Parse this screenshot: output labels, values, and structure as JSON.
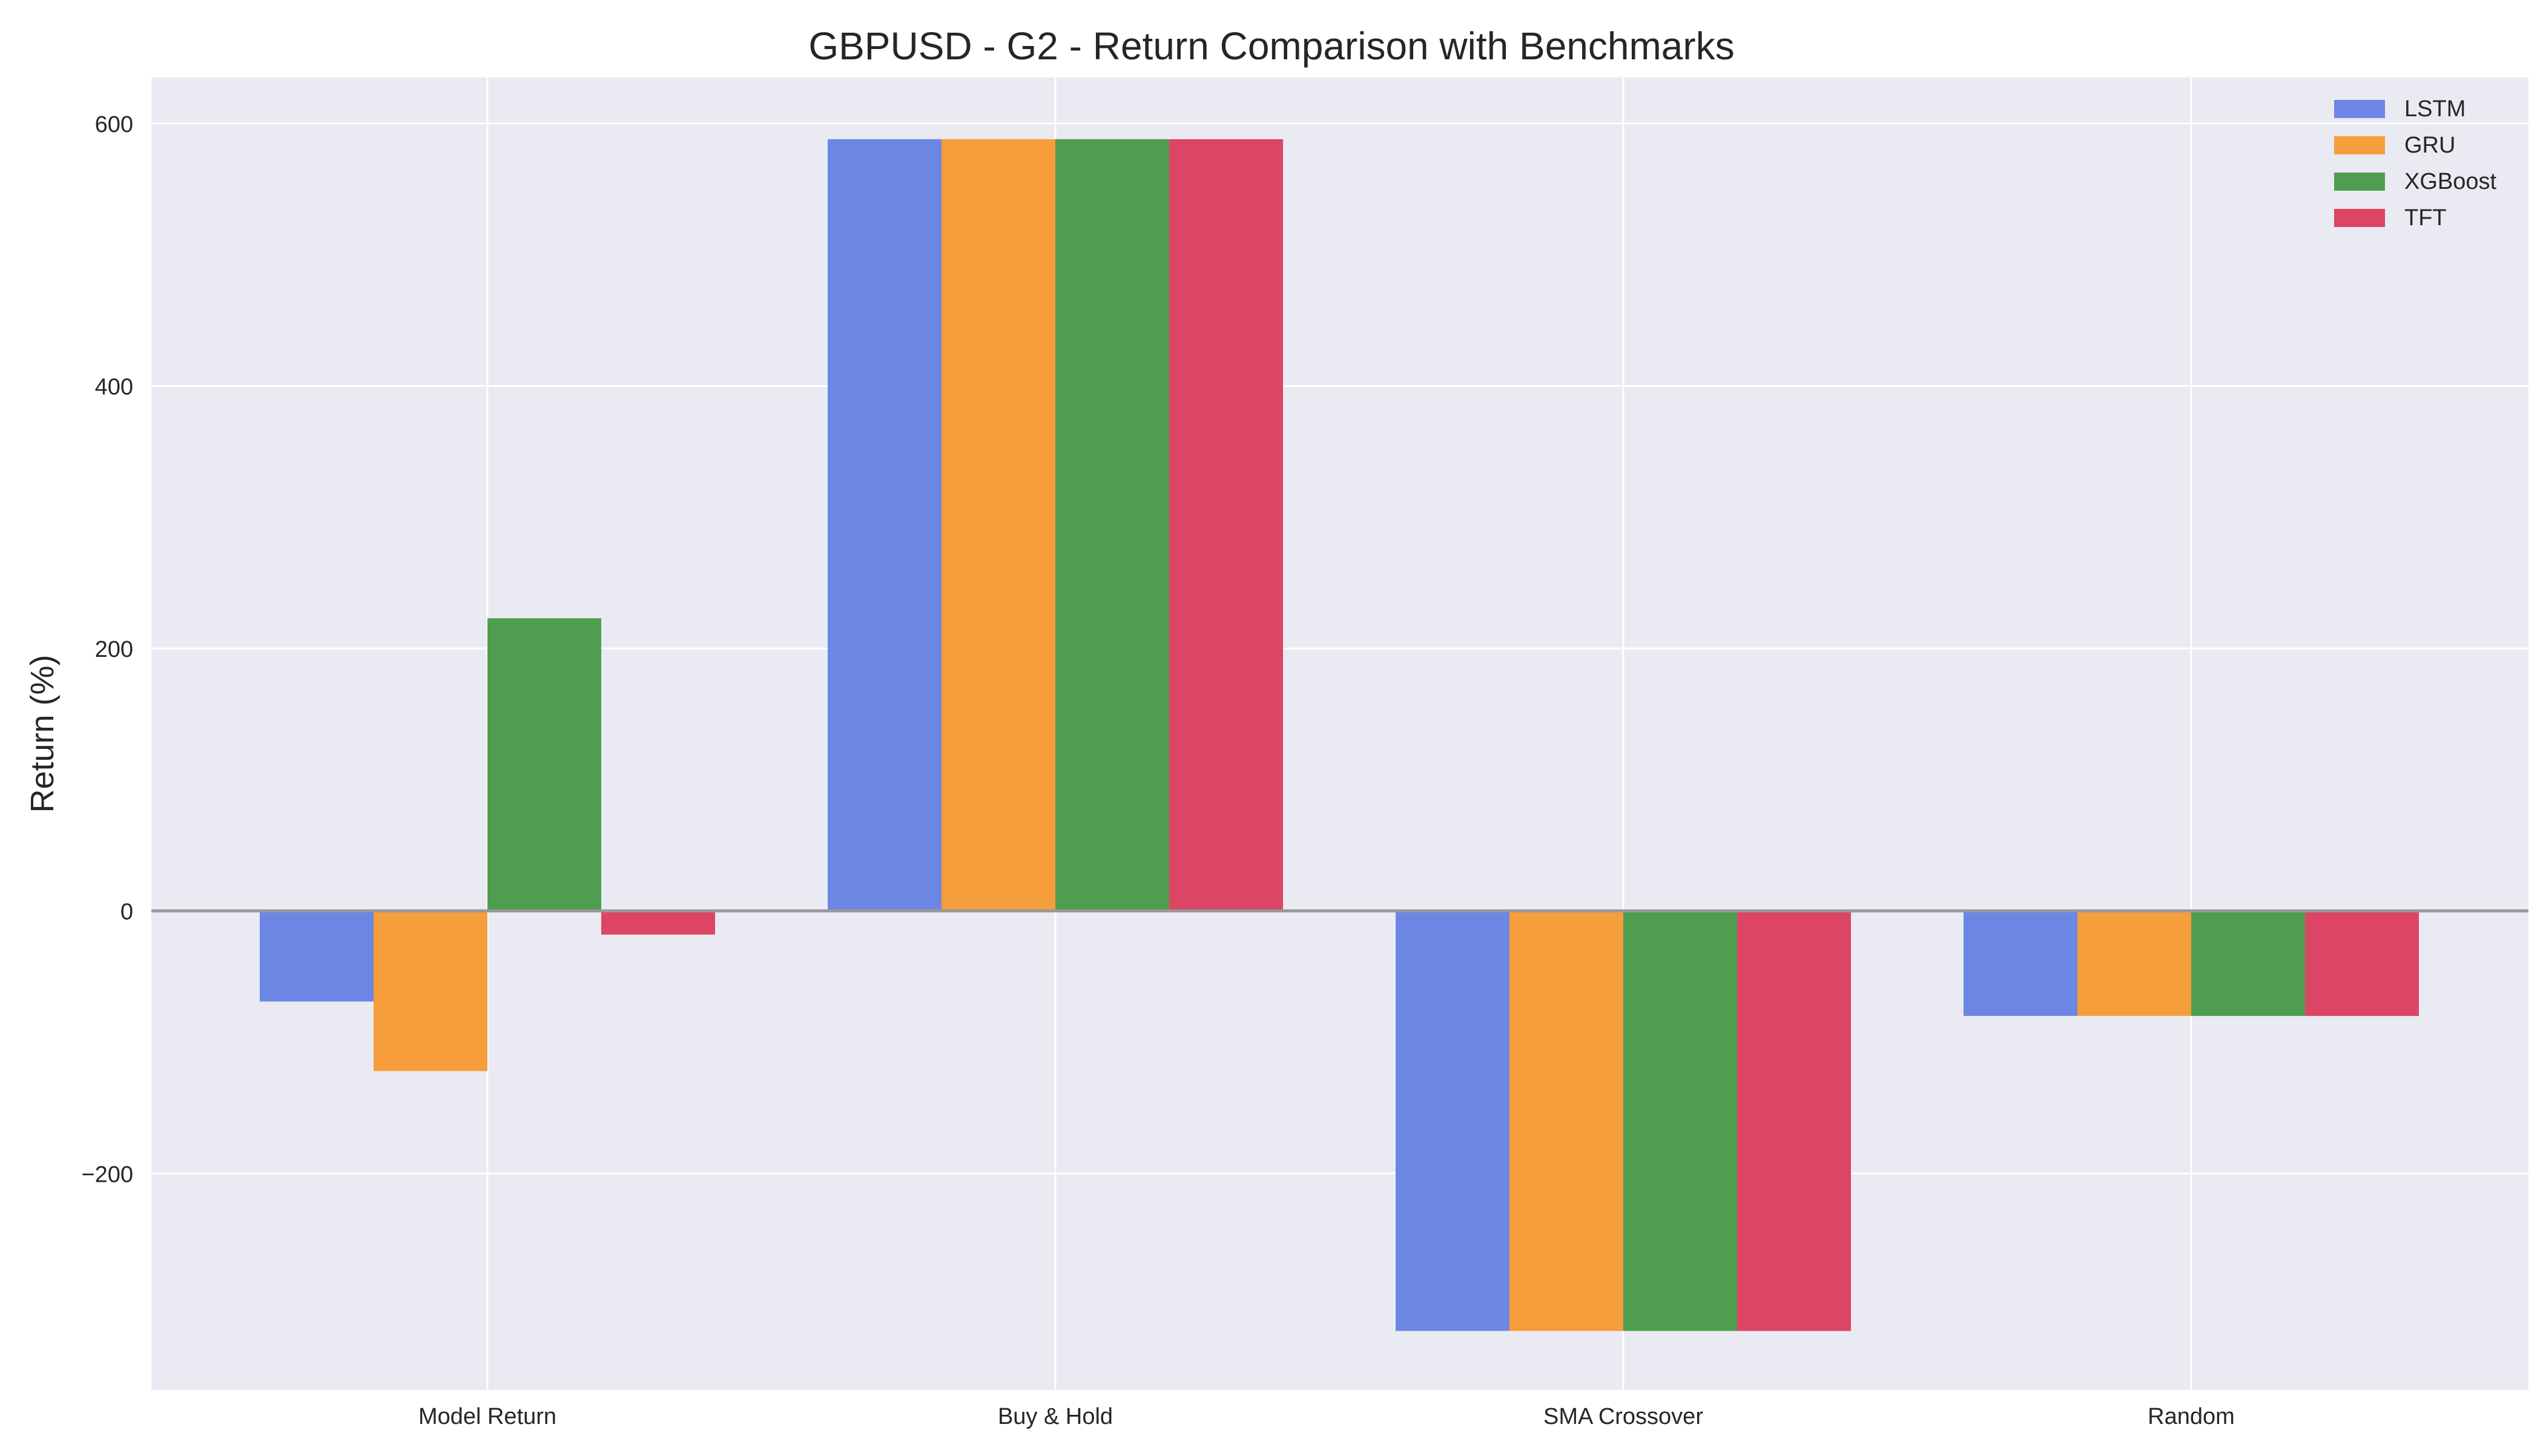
{
  "chart_data": {
    "type": "bar",
    "title": "GBPUSD - G2 - Return Comparison with Benchmarks",
    "xlabel": "",
    "ylabel": "Return (%)",
    "categories": [
      "Model Return",
      "Buy & Hold",
      "SMA Crossover",
      "Random"
    ],
    "series": [
      {
        "name": "LSTM",
        "color": "#6b87e3",
        "values": [
          -69,
          588,
          -320,
          -80
        ]
      },
      {
        "name": "GRU",
        "color": "#f59e3b",
        "values": [
          -122,
          588,
          -320,
          -80
        ]
      },
      {
        "name": "XGBoost",
        "color": "#4f9e4f",
        "values": [
          223,
          588,
          -320,
          -80
        ]
      },
      {
        "name": "TFT",
        "color": "#dc4564",
        "values": [
          -18,
          588,
          -320,
          -80
        ]
      }
    ],
    "ylim": [
      -365,
      635
    ],
    "yticks": [
      -200,
      0,
      200,
      400,
      600
    ],
    "ytick_labels": [
      "−200",
      "0",
      "200",
      "400",
      "600"
    ],
    "grid": true,
    "legend_position": "top-right",
    "zero_line": true,
    "plot_background": "#eaeaf2",
    "grid_color": "#ffffff",
    "zero_line_color": "#999999"
  }
}
